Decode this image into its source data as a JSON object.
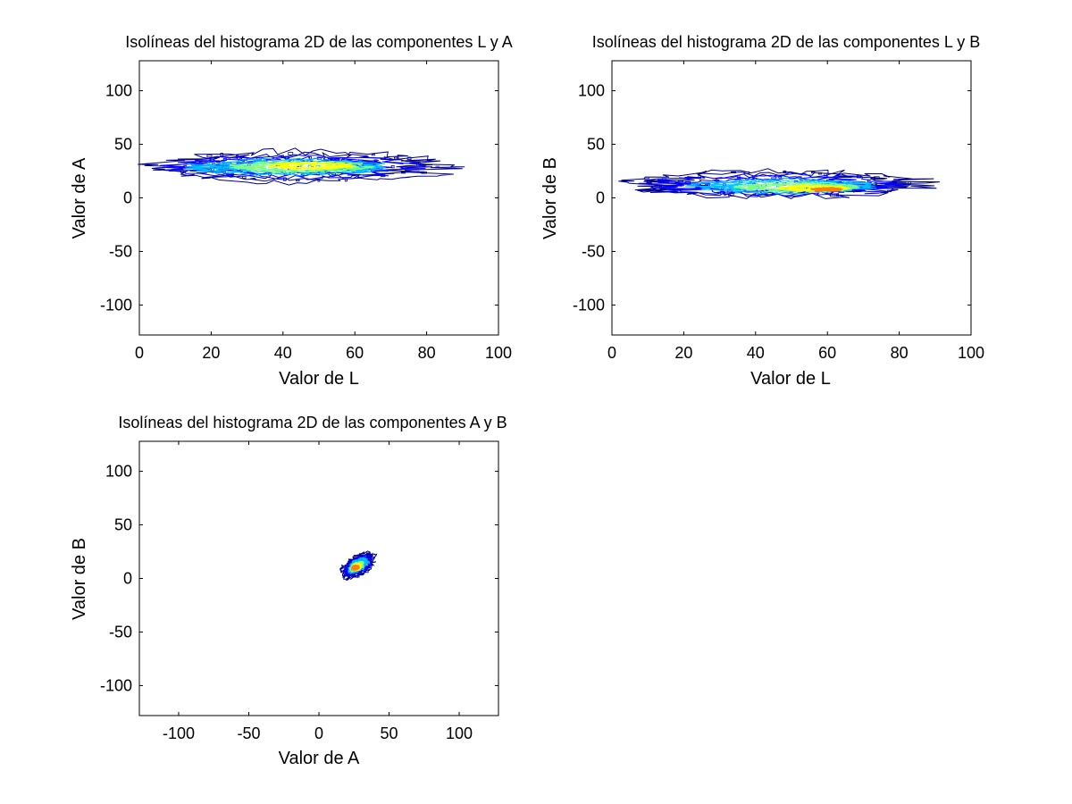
{
  "chart_data": [
    {
      "type": "contour",
      "title": "Isolíneas del histograma 2D de las componentes L y A",
      "xlabel": "Valor de L",
      "ylabel": "Valor de A",
      "xlim": [
        0,
        100
      ],
      "ylim": [
        -128,
        128
      ],
      "xticks": [
        "0",
        "20",
        "40",
        "60",
        "80",
        "100"
      ],
      "yticks": [
        "100",
        "50",
        "0",
        "-50",
        "-100"
      ],
      "xtick_values": [
        0,
        20,
        40,
        60,
        80,
        100
      ],
      "ytick_values": [
        100,
        50,
        0,
        -50,
        -100
      ],
      "colormap": [
        "#00008f",
        "#0000ff",
        "#00bfff",
        "#7fff7f",
        "#ffff00",
        "#ff7f00",
        "#ff0000"
      ],
      "cluster": {
        "extent_x": [
          7,
          85
        ],
        "extent_y": [
          12,
          45
        ],
        "level_regions": [
          {
            "level": 1,
            "cx": 45,
            "cy": 29,
            "rx": 38,
            "ry": 14
          },
          {
            "level": 2,
            "cx": 42,
            "cy": 29,
            "rx": 32,
            "ry": 10
          },
          {
            "level": 3,
            "cx": 42,
            "cy": 29,
            "rx": 26,
            "ry": 7
          },
          {
            "level": 4,
            "cx": 45,
            "cy": 29,
            "rx": 18,
            "ry": 5
          },
          {
            "level": 5,
            "cx": 48,
            "cy": 30,
            "rx": 11,
            "ry": 3
          }
        ]
      }
    },
    {
      "type": "contour",
      "title": "Isolíneas del histograma 2D de las componentes L y B",
      "xlabel": "Valor de L",
      "ylabel": "Valor de B",
      "xlim": [
        0,
        100
      ],
      "ylim": [
        -128,
        128
      ],
      "xticks": [
        "0",
        "20",
        "40",
        "60",
        "80",
        "100"
      ],
      "yticks": [
        "100",
        "50",
        "0",
        "-50",
        "-100"
      ],
      "xtick_values": [
        0,
        20,
        40,
        60,
        80,
        100
      ],
      "ytick_values": [
        100,
        50,
        0,
        -50,
        -100
      ],
      "colormap": [
        "#00008f",
        "#0000ff",
        "#00bfff",
        "#7fff7f",
        "#ffff00",
        "#ff7f00",
        "#ff0000"
      ],
      "cluster": {
        "extent_x": [
          7,
          86
        ],
        "extent_y": [
          -6,
          32
        ],
        "level_regions": [
          {
            "level": 1,
            "cx": 45,
            "cy": 13,
            "rx": 39,
            "ry": 12
          },
          {
            "level": 2,
            "cx": 45,
            "cy": 12,
            "rx": 32,
            "ry": 9
          },
          {
            "level": 3,
            "cx": 48,
            "cy": 11,
            "rx": 24,
            "ry": 6
          },
          {
            "level": 4,
            "cx": 52,
            "cy": 10,
            "rx": 16,
            "ry": 4
          },
          {
            "level": 5,
            "cx": 56,
            "cy": 9,
            "rx": 9,
            "ry": 2.5
          },
          {
            "level": 6,
            "cx": 60,
            "cy": 8,
            "rx": 4,
            "ry": 1.5
          }
        ]
      }
    },
    {
      "type": "contour",
      "title": "Isolíneas del histograma 2D de las componentes A y B",
      "xlabel": "Valor de A",
      "ylabel": "Valor de B",
      "xlim": [
        -128,
        128
      ],
      "ylim": [
        -128,
        128
      ],
      "xticks": [
        "-100",
        "-50",
        "0",
        "50",
        "100"
      ],
      "yticks": [
        "100",
        "50",
        "0",
        "-50",
        "-100"
      ],
      "xtick_values": [
        -100,
        -50,
        0,
        50,
        100
      ],
      "ytick_values": [
        100,
        50,
        0,
        -50,
        -100
      ],
      "colormap": [
        "#00008f",
        "#0000ff",
        "#00bfff",
        "#7fff7f",
        "#ffff00",
        "#ff7f00",
        "#ff0000"
      ],
      "cluster": {
        "extent_x": [
          14,
          42
        ],
        "extent_y": [
          -3,
          28
        ],
        "level_regions": [
          {
            "level": 1,
            "cx": 28,
            "cy": 12,
            "rx": 14,
            "ry": 8,
            "angle": 45
          },
          {
            "level": 2,
            "cx": 28,
            "cy": 12,
            "rx": 11,
            "ry": 6,
            "angle": 45
          },
          {
            "level": 3,
            "cx": 28,
            "cy": 12,
            "rx": 8,
            "ry": 4.5,
            "angle": 45
          },
          {
            "level": 4,
            "cx": 27,
            "cy": 11,
            "rx": 5.5,
            "ry": 3,
            "angle": 45
          },
          {
            "level": 5,
            "cx": 27,
            "cy": 11,
            "rx": 3.5,
            "ry": 2,
            "angle": 45
          },
          {
            "level": 6,
            "cx": 26,
            "cy": 10,
            "rx": 2,
            "ry": 1.2,
            "angle": 45
          }
        ]
      }
    }
  ]
}
